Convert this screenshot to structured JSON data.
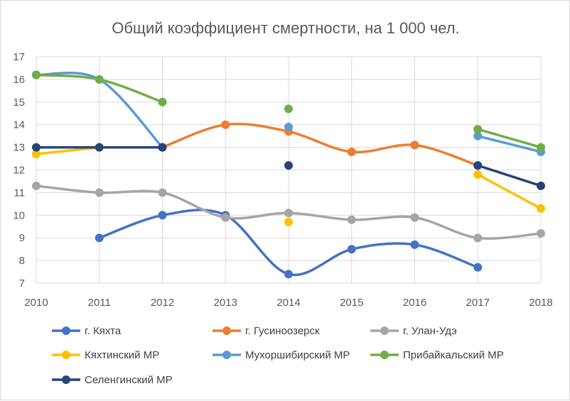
{
  "chart_data": {
    "type": "line",
    "title": "Общий коэффициент смертности, на 1 000 чел.",
    "xlabel": "",
    "ylabel": "",
    "x": [
      2010,
      2011,
      2012,
      2013,
      2014,
      2015,
      2016,
      2017,
      2018
    ],
    "x_tick_labels": [
      "2010",
      "2011",
      "2012",
      "2013",
      "2014",
      "2015",
      "2016",
      "2017",
      "2018"
    ],
    "ylim": [
      7,
      17
    ],
    "y_ticks": [
      7,
      8,
      9,
      10,
      11,
      12,
      13,
      14,
      15,
      16,
      17
    ],
    "y_tick_labels": [
      "7",
      "8",
      "9",
      "10",
      "11",
      "12",
      "13",
      "14",
      "15",
      "16",
      "17"
    ],
    "grid": "horizontal",
    "smooth": true,
    "legend_position": "bottom",
    "series": [
      {
        "name": "г. Кяхта",
        "color": "#4472c4",
        "values": [
          null,
          9.0,
          10.0,
          10.0,
          7.4,
          8.5,
          8.7,
          7.7,
          null
        ]
      },
      {
        "name": "г. Гусиноозерск",
        "color": "#ed7d31",
        "values": [
          null,
          null,
          13.0,
          14.0,
          13.7,
          12.8,
          13.1,
          12.2,
          null
        ]
      },
      {
        "name": "г. Улан-Удэ",
        "color": "#a5a5a5",
        "values": [
          11.3,
          11.0,
          11.0,
          9.9,
          10.1,
          9.8,
          9.9,
          9.0,
          9.2
        ]
      },
      {
        "name": "Кяхтинский МР",
        "color": "#ffc000",
        "values": [
          12.7,
          13.0,
          null,
          null,
          9.7,
          null,
          null,
          11.8,
          10.3
        ]
      },
      {
        "name": "Мухоршибирский МР",
        "color": "#5b9bd5",
        "values": [
          16.2,
          16.0,
          13.0,
          null,
          13.9,
          null,
          null,
          13.5,
          12.8
        ]
      },
      {
        "name": "Прибайкальский МР",
        "color": "#70ad47",
        "values": [
          16.2,
          16.0,
          15.0,
          null,
          14.7,
          null,
          null,
          13.8,
          13.0
        ]
      },
      {
        "name": "Селенгинский МР",
        "color": "#264478",
        "values": [
          13.0,
          13.0,
          13.0,
          null,
          12.2,
          null,
          null,
          12.2,
          11.3
        ]
      }
    ]
  }
}
